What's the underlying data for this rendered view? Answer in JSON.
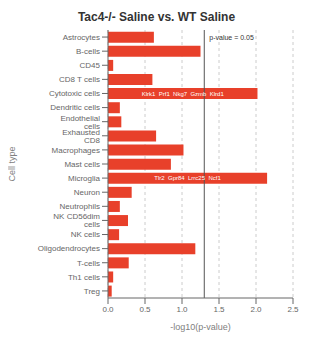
{
  "chart_data": {
    "type": "bar",
    "orientation": "horizontal",
    "title": "Tac4-/- Saline vs. WT Saline",
    "x_label": "-log10(p-value)",
    "y_label": "Cell type",
    "color": "#e8402a",
    "grid": true,
    "xlim": [
      0,
      2.5
    ],
    "xticks": [
      {
        "value": 0,
        "label": "0.0"
      },
      0.5,
      {
        "value": 1,
        "label": "1.0"
      },
      1.5,
      {
        "value": 2,
        "label": "2.0"
      },
      2.5
    ],
    "categories": [
      "Astrocytes",
      "B-cells",
      "CD45",
      "CD8 T cells",
      "Cytotoxic cells",
      "Dendritic cells",
      "Endothelial cells",
      "Exhausted CD8",
      "Macrophages",
      "Mast cells",
      "Microglia",
      "Neuron",
      "Neutrophils",
      "NK CD56dim cells",
      "NK cells",
      "Oligodendrocytes",
      "T-cells",
      "Th1 cells",
      "Treg"
    ],
    "values": [
      0.62,
      1.25,
      0.07,
      0.6,
      2.02,
      0.16,
      0.18,
      0.65,
      1.02,
      0.85,
      2.15,
      0.32,
      0.16,
      0.27,
      0.15,
      1.18,
      0.28,
      0.07,
      0.05
    ],
    "annotations": [
      {
        "category": "Microglia",
        "text": "Tlr2  Gpr84  Lrrc25  Ncf1"
      },
      {
        "category": "Cytotoxic cells",
        "text": "Klrk1  Prf1  Nkg7  Gzmb  Klrd1"
      }
    ],
    "vline": {
      "x": 1.301,
      "label": "p-value = 0.05"
    }
  }
}
